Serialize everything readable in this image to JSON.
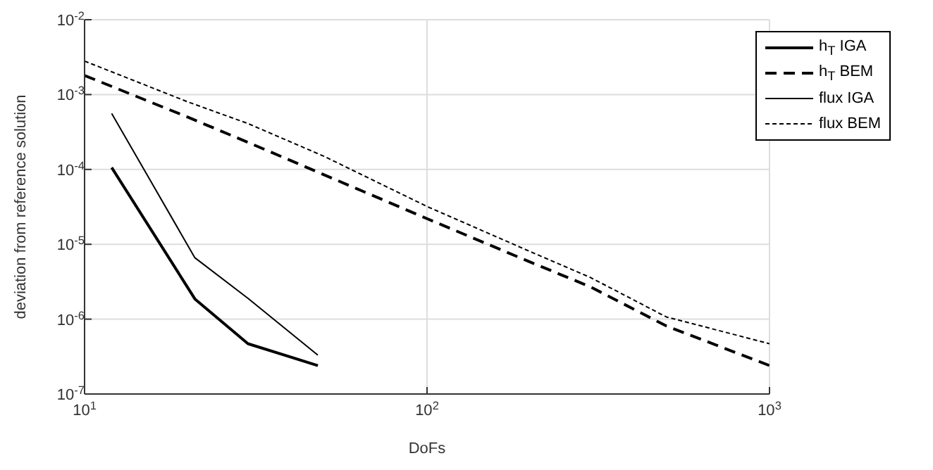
{
  "chart_data": {
    "type": "line",
    "xlabel": "DoFs",
    "ylabel": "deviation from reference solution",
    "log": "xy",
    "grid": true,
    "legend": "top right",
    "marker": "none",
    "xlim": [
      10,
      1000
    ],
    "xticks": [
      {
        "value": 10,
        "label": "10$^{1}$"
      },
      {
        "value": 100,
        "label": "10$^{2}$"
      },
      {
        "value": 1000,
        "label": "10$^{3}$"
      }
    ],
    "ylim": [
      1e-07,
      0.01
    ],
    "yticks": [
      {
        "value": 1e-07,
        "label": "10$^{-7}$"
      },
      {
        "value": 1e-06,
        "label": "10$^{-6}$"
      },
      {
        "value": 1e-05,
        "label": "10$^{-5}$"
      },
      {
        "value": 0.0001,
        "label": "10$^{-4}$"
      },
      {
        "value": 0.001,
        "label": "10$^{-3}$"
      },
      {
        "value": 0.01,
        "label": "10$^{-2}$"
      }
    ],
    "series": [
      {
        "name": "h$_{T}$ IGA",
        "color": "#000000",
        "line_style": "solid",
        "x": [
          12,
          21,
          30,
          48
        ],
        "values": [
          0.000106,
          1.86e-06,
          4.7e-07,
          2.4e-07
        ]
      },
      {
        "name": "h$_{T}$ BEM",
        "color": "#000000",
        "line_style": "dashed",
        "x": [
          10,
          20,
          30,
          50,
          100,
          200,
          300,
          500,
          1000
        ],
        "values": [
          0.0018,
          0.0005,
          0.00023,
          8.5e-05,
          2.2e-05,
          5.8e-06,
          2.7e-06,
          8.1e-07,
          2.4e-07
        ]
      },
      {
        "name": "flux IGA",
        "color": "#000000",
        "line_style": "solid",
        "x": [
          12,
          21,
          30,
          48
        ],
        "values": [
          0.00056,
          6.6e-06,
          1.9e-06,
          3.3e-07
        ]
      },
      {
        "name": "flux BEM",
        "color": "#000000",
        "line_style": "dotted",
        "x": [
          10,
          20,
          30,
          50,
          100,
          200,
          300,
          500,
          1000
        ],
        "values": [
          0.0028,
          0.0008,
          0.00041,
          0.00015,
          3.2e-05,
          8e-06,
          3.6e-06,
          1.07e-06,
          4.7e-07
        ]
      }
    ]
  }
}
